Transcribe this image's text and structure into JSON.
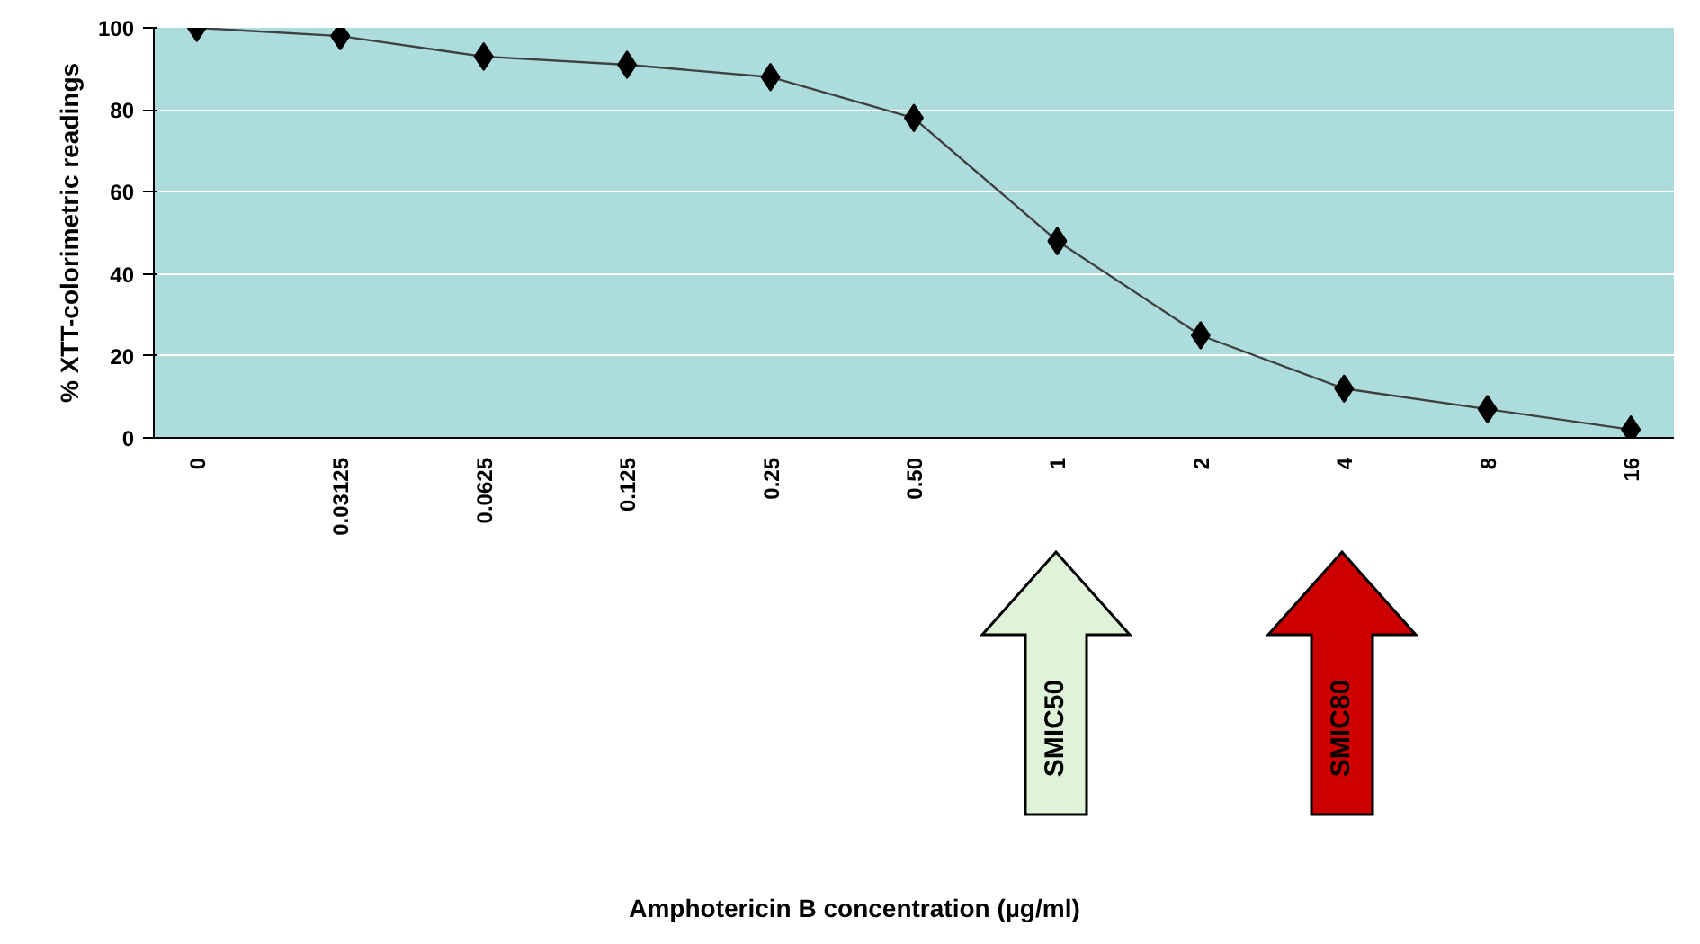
{
  "chart_data": {
    "type": "line",
    "ylabel": "% XTT-colorimetric readings",
    "categories": [
      "0",
      "0.03125",
      "0.0625",
      "0.125",
      "0.25",
      "0.50",
      "1",
      "2",
      "4",
      "8",
      "16"
    ],
    "series": [
      {
        "color": "#000000",
        "values": [
          100,
          98,
          93,
          91,
          88,
          78,
          48,
          25,
          12,
          7,
          2
        ]
      }
    ],
    "ylim": [
      0,
      100
    ],
    "yticks": [
      0,
      20,
      40,
      60,
      80,
      100
    ],
    "grid": "y",
    "marker": "diamond",
    "line_style": "solid",
    "annotations": [
      "SMIC50",
      "SMIC80",
      "Amphotericin B concentration (µg/ml)"
    ]
  }
}
